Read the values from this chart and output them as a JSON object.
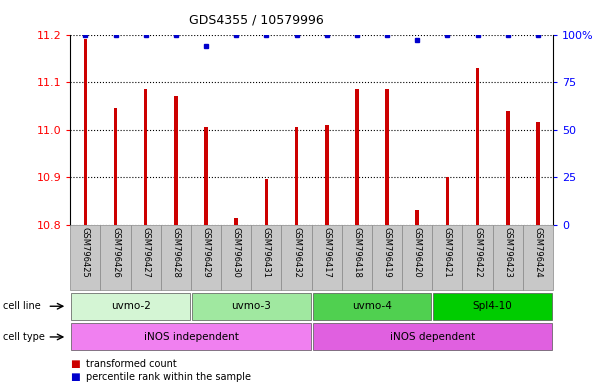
{
  "title": "GDS4355 / 10579996",
  "samples": [
    "GSM796425",
    "GSM796426",
    "GSM796427",
    "GSM796428",
    "GSM796429",
    "GSM796430",
    "GSM796431",
    "GSM796432",
    "GSM796417",
    "GSM796418",
    "GSM796419",
    "GSM796420",
    "GSM796421",
    "GSM796422",
    "GSM796423",
    "GSM796424"
  ],
  "red_values": [
    11.19,
    11.045,
    11.085,
    11.07,
    11.005,
    10.815,
    10.895,
    11.005,
    11.01,
    11.085,
    11.085,
    10.83,
    10.9,
    11.13,
    11.04,
    11.015
  ],
  "blue_values": [
    100,
    100,
    100,
    100,
    94,
    100,
    100,
    100,
    100,
    100,
    100,
    97,
    100,
    100,
    100,
    100
  ],
  "cell_lines": [
    {
      "label": "uvmo-2",
      "start": 0,
      "end": 4,
      "color": "#d4f5d4"
    },
    {
      "label": "uvmo-3",
      "start": 4,
      "end": 8,
      "color": "#a0e8a0"
    },
    {
      "label": "uvmo-4",
      "start": 8,
      "end": 12,
      "color": "#50d050"
    },
    {
      "label": "Spl4-10",
      "start": 12,
      "end": 16,
      "color": "#00cc00"
    }
  ],
  "cell_types": [
    {
      "label": "iNOS independent",
      "start": 0,
      "end": 8,
      "color": "#f080f0"
    },
    {
      "label": "iNOS dependent",
      "start": 8,
      "end": 16,
      "color": "#e060e0"
    }
  ],
  "ylim_left": [
    10.8,
    11.2
  ],
  "ylim_right": [
    0,
    100
  ],
  "y_ticks_left": [
    10.8,
    10.9,
    11.0,
    11.1,
    11.2
  ],
  "y_ticks_right": [
    0,
    25,
    50,
    75,
    100
  ],
  "bar_color": "#cc0000",
  "dot_color": "#0000cc",
  "bar_width": 0.12,
  "legend_labels": [
    "transformed count",
    "percentile rank within the sample"
  ],
  "legend_colors": [
    "#cc0000",
    "#0000cc"
  ],
  "sample_box_color": "#c8c8c8",
  "sample_box_edge": "#888888"
}
